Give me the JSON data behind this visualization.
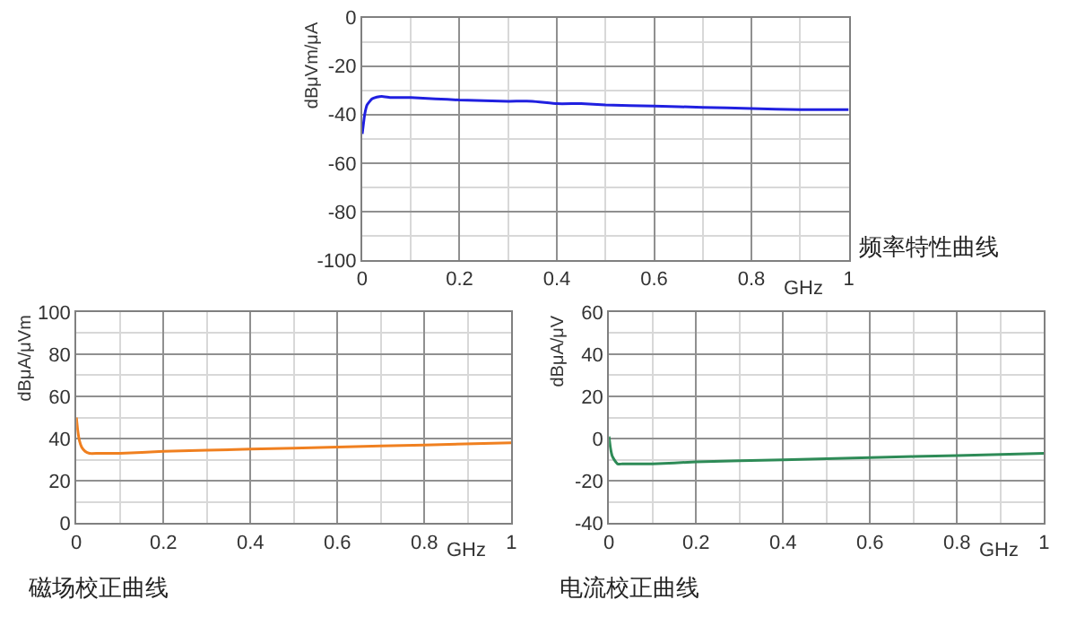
{
  "chart_data": [
    {
      "type": "line",
      "title": "频率特性曲线",
      "xlabel": "GHz",
      "ylabel": "dBμVm/μA",
      "x": [
        0,
        0.005,
        0.01,
        0.02,
        0.03,
        0.04,
        0.06,
        0.1,
        0.15,
        0.2,
        0.3,
        0.35,
        0.4,
        0.45,
        0.5,
        0.6,
        0.7,
        0.8,
        0.9,
        1
      ],
      "series": [
        {
          "color": "#2020e0",
          "values": [
            -48,
            -40,
            -36,
            -33.5,
            -32.8,
            -32.5,
            -33,
            -33,
            -33.5,
            -34,
            -34.5,
            -34.5,
            -35.5,
            -35.5,
            -36,
            -36.5,
            -37,
            -37.5,
            -38,
            -38
          ]
        }
      ],
      "xlim": [
        0,
        1
      ],
      "xticks": [
        0,
        0.2,
        0.4,
        0.6,
        0.8,
        1
      ],
      "ylim": [
        -100,
        0
      ],
      "yticks": [
        -100,
        -80,
        -60,
        -40,
        -20,
        0
      ],
      "grid": true
    },
    {
      "type": "line",
      "title": "磁场校正曲线",
      "xlabel": "GHz",
      "ylabel": "dBμA/μVm",
      "x": [
        0,
        0.003,
        0.007,
        0.012,
        0.02,
        0.03,
        0.05,
        0.1,
        0.2,
        0.4,
        0.6,
        0.8,
        1
      ],
      "series": [
        {
          "color": "#f08020",
          "values": [
            50,
            44,
            39,
            36,
            34,
            33,
            33,
            33,
            34,
            35,
            36,
            37,
            38
          ]
        }
      ],
      "xlim": [
        0,
        1
      ],
      "xticks": [
        0,
        0.2,
        0.4,
        0.6,
        0.8,
        1
      ],
      "ylim": [
        0,
        100
      ],
      "yticks": [
        0,
        20,
        40,
        60,
        80,
        100
      ],
      "grid": true
    },
    {
      "type": "line",
      "title": "电流校正曲线",
      "xlabel": "GHz",
      "ylabel": "dBμA/μV",
      "x": [
        0,
        0.003,
        0.007,
        0.012,
        0.02,
        0.03,
        0.05,
        0.1,
        0.2,
        0.4,
        0.6,
        0.8,
        1
      ],
      "series": [
        {
          "color": "#2e8b57",
          "values": [
            1,
            -4,
            -8,
            -10,
            -12,
            -12,
            -12,
            -12,
            -11,
            -10,
            -9,
            -8,
            -7
          ]
        }
      ],
      "xlim": [
        0,
        1
      ],
      "xticks": [
        0,
        0.2,
        0.4,
        0.6,
        0.8,
        1
      ],
      "ylim": [
        -40,
        60
      ],
      "yticks": [
        -40,
        -20,
        0,
        20,
        40,
        60
      ],
      "grid": true
    }
  ]
}
